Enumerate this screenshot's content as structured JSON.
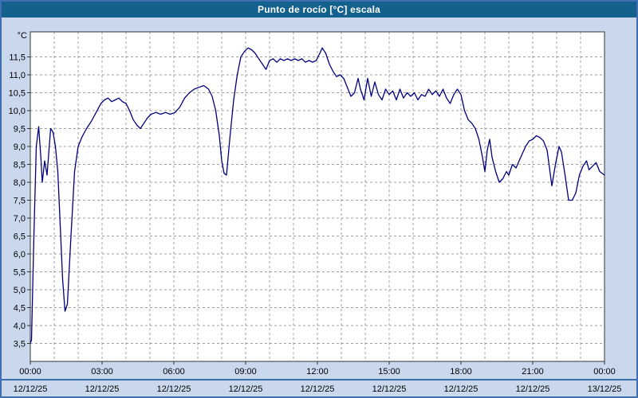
{
  "window": {
    "title": "Punto de rocío [°C] escala"
  },
  "chart_data": {
    "type": "line",
    "title": "Punto de rocío [°C] escala",
    "xlabel": "",
    "ylabel": "°C",
    "x_unit": "hours",
    "xlim": [
      0,
      24
    ],
    "ylim": [
      3.0,
      12.2
    ],
    "grid": {
      "show": true,
      "style": "dashed",
      "color": "#9f9f9f",
      "minor_x_hours": 1
    },
    "yticks": [
      11.5,
      11.0,
      10.5,
      10.0,
      9.5,
      9.0,
      8.5,
      8.0,
      7.5,
      7.0,
      6.5,
      6.0,
      5.5,
      5.0,
      4.5,
      4.0,
      3.5
    ],
    "ytick_labels": [
      "11,5",
      "11,0",
      "10,5",
      "10,0",
      "9,5",
      "9,0",
      "8,5",
      "8,0",
      "7,5",
      "7,0",
      "6,5",
      "6,0",
      "5,5",
      "5,0",
      "4,5",
      "4,0",
      "3,5"
    ],
    "xticks": [
      0,
      3,
      6,
      9,
      12,
      15,
      18,
      21,
      24
    ],
    "xtick_labels": [
      "00:00",
      "03:00",
      "06:00",
      "09:00",
      "12:00",
      "15:00",
      "18:00",
      "21:00",
      "00:00"
    ],
    "xtick_dates": [
      "12/12/25",
      "12/12/25",
      "12/12/25",
      "12/12/25",
      "12/12/25",
      "12/12/25",
      "12/12/25",
      "12/12/25",
      "13/12/25"
    ],
    "colors": {
      "titlebar": "#14618e",
      "background": "#cad8ee",
      "plot_bg": "#ffffff",
      "line": "#00007f",
      "border": "#3f6fae"
    },
    "series": [
      {
        "name": "Punto de rocío",
        "color": "#00007f",
        "points": [
          [
            0,
            3.5
          ],
          [
            0.05,
            3.6
          ],
          [
            0.15,
            6.5
          ],
          [
            0.25,
            9.0
          ],
          [
            0.35,
            9.55
          ],
          [
            0.45,
            8.6
          ],
          [
            0.5,
            8.0
          ],
          [
            0.6,
            8.6
          ],
          [
            0.7,
            8.2
          ],
          [
            0.85,
            9.5
          ],
          [
            0.95,
            9.4
          ],
          [
            1.05,
            9.0
          ],
          [
            1.15,
            8.3
          ],
          [
            1.25,
            6.8
          ],
          [
            1.35,
            5.3
          ],
          [
            1.45,
            4.4
          ],
          [
            1.55,
            4.6
          ],
          [
            1.7,
            6.5
          ],
          [
            1.85,
            8.3
          ],
          [
            2.0,
            9.0
          ],
          [
            2.15,
            9.25
          ],
          [
            2.35,
            9.5
          ],
          [
            2.55,
            9.7
          ],
          [
            2.75,
            9.95
          ],
          [
            2.95,
            10.2
          ],
          [
            3.1,
            10.3
          ],
          [
            3.25,
            10.35
          ],
          [
            3.4,
            10.25
          ],
          [
            3.55,
            10.3
          ],
          [
            3.7,
            10.35
          ],
          [
            3.85,
            10.25
          ],
          [
            4.0,
            10.2
          ],
          [
            4.15,
            10.0
          ],
          [
            4.3,
            9.75
          ],
          [
            4.45,
            9.6
          ],
          [
            4.6,
            9.5
          ],
          [
            4.75,
            9.65
          ],
          [
            4.9,
            9.8
          ],
          [
            5.05,
            9.9
          ],
          [
            5.25,
            9.95
          ],
          [
            5.45,
            9.9
          ],
          [
            5.65,
            9.95
          ],
          [
            5.85,
            9.9
          ],
          [
            6.05,
            9.95
          ],
          [
            6.25,
            10.1
          ],
          [
            6.45,
            10.35
          ],
          [
            6.65,
            10.5
          ],
          [
            6.85,
            10.6
          ],
          [
            7.05,
            10.65
          ],
          [
            7.25,
            10.7
          ],
          [
            7.45,
            10.6
          ],
          [
            7.6,
            10.4
          ],
          [
            7.75,
            10.0
          ],
          [
            7.9,
            9.3
          ],
          [
            8.0,
            8.6
          ],
          [
            8.1,
            8.25
          ],
          [
            8.2,
            8.2
          ],
          [
            8.35,
            9.3
          ],
          [
            8.5,
            10.3
          ],
          [
            8.65,
            11.0
          ],
          [
            8.8,
            11.5
          ],
          [
            8.95,
            11.65
          ],
          [
            9.1,
            11.75
          ],
          [
            9.25,
            11.7
          ],
          [
            9.4,
            11.6
          ],
          [
            9.55,
            11.45
          ],
          [
            9.7,
            11.3
          ],
          [
            9.85,
            11.15
          ],
          [
            10.0,
            11.4
          ],
          [
            10.15,
            11.45
          ],
          [
            10.3,
            11.35
          ],
          [
            10.45,
            11.45
          ],
          [
            10.6,
            11.4
          ],
          [
            10.75,
            11.45
          ],
          [
            10.9,
            11.4
          ],
          [
            11.05,
            11.45
          ],
          [
            11.2,
            11.4
          ],
          [
            11.35,
            11.45
          ],
          [
            11.5,
            11.35
          ],
          [
            11.65,
            11.4
          ],
          [
            11.8,
            11.35
          ],
          [
            11.95,
            11.4
          ],
          [
            12.1,
            11.6
          ],
          [
            12.2,
            11.75
          ],
          [
            12.35,
            11.6
          ],
          [
            12.5,
            11.3
          ],
          [
            12.65,
            11.1
          ],
          [
            12.8,
            10.95
          ],
          [
            12.95,
            11.0
          ],
          [
            13.1,
            10.9
          ],
          [
            13.25,
            10.65
          ],
          [
            13.4,
            10.4
          ],
          [
            13.55,
            10.5
          ],
          [
            13.7,
            10.9
          ],
          [
            13.8,
            10.6
          ],
          [
            13.95,
            10.3
          ],
          [
            14.1,
            10.9
          ],
          [
            14.25,
            10.4
          ],
          [
            14.4,
            10.8
          ],
          [
            14.55,
            10.45
          ],
          [
            14.7,
            10.3
          ],
          [
            14.85,
            10.6
          ],
          [
            15.0,
            10.45
          ],
          [
            15.15,
            10.55
          ],
          [
            15.3,
            10.3
          ],
          [
            15.45,
            10.6
          ],
          [
            15.6,
            10.35
          ],
          [
            15.75,
            10.5
          ],
          [
            15.9,
            10.4
          ],
          [
            16.05,
            10.5
          ],
          [
            16.2,
            10.3
          ],
          [
            16.35,
            10.45
          ],
          [
            16.5,
            10.4
          ],
          [
            16.65,
            10.6
          ],
          [
            16.8,
            10.45
          ],
          [
            16.95,
            10.55
          ],
          [
            17.1,
            10.4
          ],
          [
            17.25,
            10.6
          ],
          [
            17.4,
            10.35
          ],
          [
            17.55,
            10.2
          ],
          [
            17.7,
            10.45
          ],
          [
            17.85,
            10.6
          ],
          [
            18.0,
            10.45
          ],
          [
            18.15,
            10.0
          ],
          [
            18.3,
            9.75
          ],
          [
            18.45,
            9.65
          ],
          [
            18.6,
            9.5
          ],
          [
            18.75,
            9.2
          ],
          [
            18.9,
            8.7
          ],
          [
            19.0,
            8.3
          ],
          [
            19.1,
            8.9
          ],
          [
            19.2,
            9.2
          ],
          [
            19.3,
            8.7
          ],
          [
            19.45,
            8.3
          ],
          [
            19.6,
            8.0
          ],
          [
            19.75,
            8.1
          ],
          [
            19.9,
            8.3
          ],
          [
            20.0,
            8.2
          ],
          [
            20.15,
            8.5
          ],
          [
            20.3,
            8.4
          ],
          [
            20.5,
            8.7
          ],
          [
            20.7,
            9.0
          ],
          [
            20.85,
            9.15
          ],
          [
            21.0,
            9.2
          ],
          [
            21.15,
            9.3
          ],
          [
            21.3,
            9.25
          ],
          [
            21.45,
            9.15
          ],
          [
            21.6,
            8.9
          ],
          [
            21.7,
            8.4
          ],
          [
            21.8,
            7.9
          ],
          [
            21.95,
            8.5
          ],
          [
            22.1,
            9.0
          ],
          [
            22.2,
            8.85
          ],
          [
            22.35,
            8.2
          ],
          [
            22.5,
            7.5
          ],
          [
            22.65,
            7.5
          ],
          [
            22.8,
            7.7
          ],
          [
            22.95,
            8.2
          ],
          [
            23.1,
            8.45
          ],
          [
            23.25,
            8.6
          ],
          [
            23.35,
            8.35
          ],
          [
            23.5,
            8.45
          ],
          [
            23.65,
            8.55
          ],
          [
            23.8,
            8.3
          ],
          [
            24.0,
            8.2
          ]
        ]
      }
    ]
  }
}
